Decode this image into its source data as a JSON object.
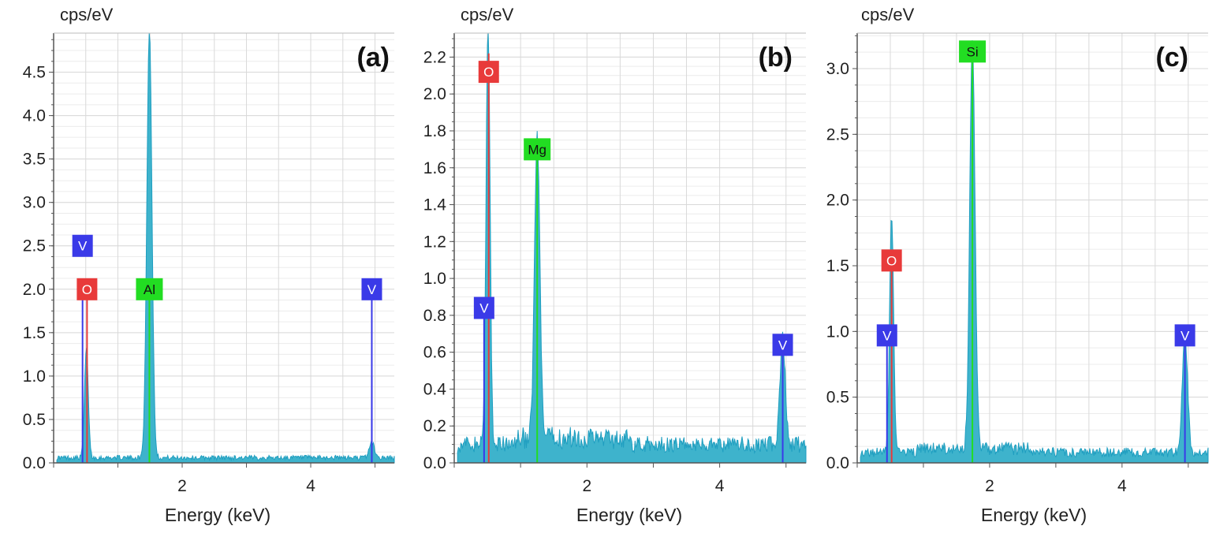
{
  "chart_data": [
    {
      "type": "area",
      "panel_label": "(a)",
      "title": "",
      "xlabel": "Energy (keV)",
      "ylabel": "cps/eV",
      "xlim": [
        0,
        5.3
      ],
      "ylim": [
        0,
        4.95
      ],
      "xticks": [
        2,
        4
      ],
      "xtick_labels": [
        "2",
        "4"
      ],
      "yticks": [
        0,
        0.5,
        1.0,
        1.5,
        2.0,
        2.5,
        3.0,
        3.5,
        4.0,
        4.5
      ],
      "ytick_labels": [
        "0.0",
        "0.5",
        "1.0",
        "1.5",
        "2.0",
        "2.5",
        "3.0",
        "3.5",
        "4.0",
        "4.5"
      ],
      "grid": true,
      "background_level": 0.06,
      "spectrum_peaks": [
        {
          "energy": 0.51,
          "height": 1.25
        },
        {
          "energy": 1.49,
          "height": 4.92
        },
        {
          "energy": 4.95,
          "height": 0.18
        }
      ],
      "element_markers": [
        {
          "element": "V",
          "energy": 0.45,
          "line_height": 2.0,
          "tag_y": 2.5,
          "color": "#3a3ae8"
        },
        {
          "element": "O",
          "energy": 0.52,
          "line_height": 2.0,
          "tag_y": 2.0,
          "color": "#e83a3a"
        },
        {
          "element": "Al",
          "energy": 1.49,
          "line_height": 2.0,
          "tag_y": 2.0,
          "color": "#22dd22"
        },
        {
          "element": "V",
          "energy": 4.95,
          "line_height": 2.0,
          "tag_y": 2.0,
          "color": "#3a3ae8"
        },
        {
          "element": "V",
          "energy": 4.95,
          "line_height": 1.0,
          "tag_y": null,
          "color": "#3a3ae8"
        }
      ]
    },
    {
      "type": "area",
      "panel_label": "(b)",
      "title": "",
      "xlabel": "Energy (keV)",
      "ylabel": "cps/eV",
      "xlim": [
        0,
        5.3
      ],
      "ylim": [
        0,
        2.33
      ],
      "xticks": [
        2,
        4
      ],
      "xtick_labels": [
        "2",
        "4"
      ],
      "yticks": [
        0,
        0.2,
        0.4,
        0.6,
        0.8,
        1.0,
        1.2,
        1.4,
        1.6,
        1.8,
        2.0,
        2.2
      ],
      "ytick_labels": [
        "0.0",
        "0.2",
        "0.4",
        "0.6",
        "0.8",
        "1.0",
        "1.2",
        "1.4",
        "1.6",
        "1.8",
        "2.0",
        "2.2"
      ],
      "grid": true,
      "background_level": 0.1,
      "spectrum_peaks": [
        {
          "energy": 0.51,
          "height": 2.3
        },
        {
          "energy": 1.25,
          "height": 1.63
        },
        {
          "energy": 4.95,
          "height": 0.57
        }
      ],
      "element_markers": [
        {
          "element": "O",
          "energy": 0.52,
          "line_height": 2.22,
          "tag_y": 2.12,
          "color": "#e83a3a"
        },
        {
          "element": "Mg",
          "energy": 1.25,
          "line_height": 1.65,
          "tag_y": 1.7,
          "color": "#22dd22"
        },
        {
          "element": "V",
          "energy": 0.45,
          "line_height": 0.8,
          "tag_y": 0.84,
          "color": "#3a3ae8"
        },
        {
          "element": "V",
          "energy": 4.95,
          "line_height": 0.6,
          "tag_y": 0.64,
          "color": "#3a3ae8"
        }
      ]
    },
    {
      "type": "area",
      "panel_label": "(c)",
      "title": "",
      "xlabel": "Energy (keV)",
      "ylabel": "cps/eV",
      "xlim": [
        0,
        5.3
      ],
      "ylim": [
        0,
        3.27
      ],
      "xticks": [
        2,
        4
      ],
      "xtick_labels": [
        "2",
        "4"
      ],
      "yticks": [
        0,
        0.5,
        1.0,
        1.5,
        2.0,
        2.5,
        3.0
      ],
      "ytick_labels": [
        "0.0",
        "0.5",
        "1.0",
        "1.5",
        "2.0",
        "2.5",
        "3.0"
      ],
      "grid": true,
      "background_level": 0.08,
      "spectrum_peaks": [
        {
          "energy": 0.52,
          "height": 1.8
        },
        {
          "energy": 1.74,
          "height": 3.1
        },
        {
          "energy": 4.95,
          "height": 0.88
        }
      ],
      "element_markers": [
        {
          "element": "Si",
          "energy": 1.74,
          "line_height": 3.1,
          "tag_y": 3.13,
          "color": "#22dd22"
        },
        {
          "element": "O",
          "energy": 0.52,
          "line_height": 1.55,
          "tag_y": 1.54,
          "color": "#e83a3a"
        },
        {
          "element": "V",
          "energy": 0.45,
          "line_height": 0.95,
          "tag_y": 0.97,
          "color": "#3a3ae8"
        },
        {
          "element": "V",
          "energy": 4.95,
          "line_height": 0.93,
          "tag_y": 0.97,
          "color": "#3a3ae8"
        }
      ]
    }
  ],
  "colors": {
    "spectrum_fill": "#3eb3cc",
    "spectrum_stroke": "#1f9ec0",
    "grid_major": "#d9d9d9",
    "grid_minor": "#ececec",
    "axis": "#555555",
    "tag_text": "#ffffff",
    "tag_text_dark": "#111111"
  }
}
